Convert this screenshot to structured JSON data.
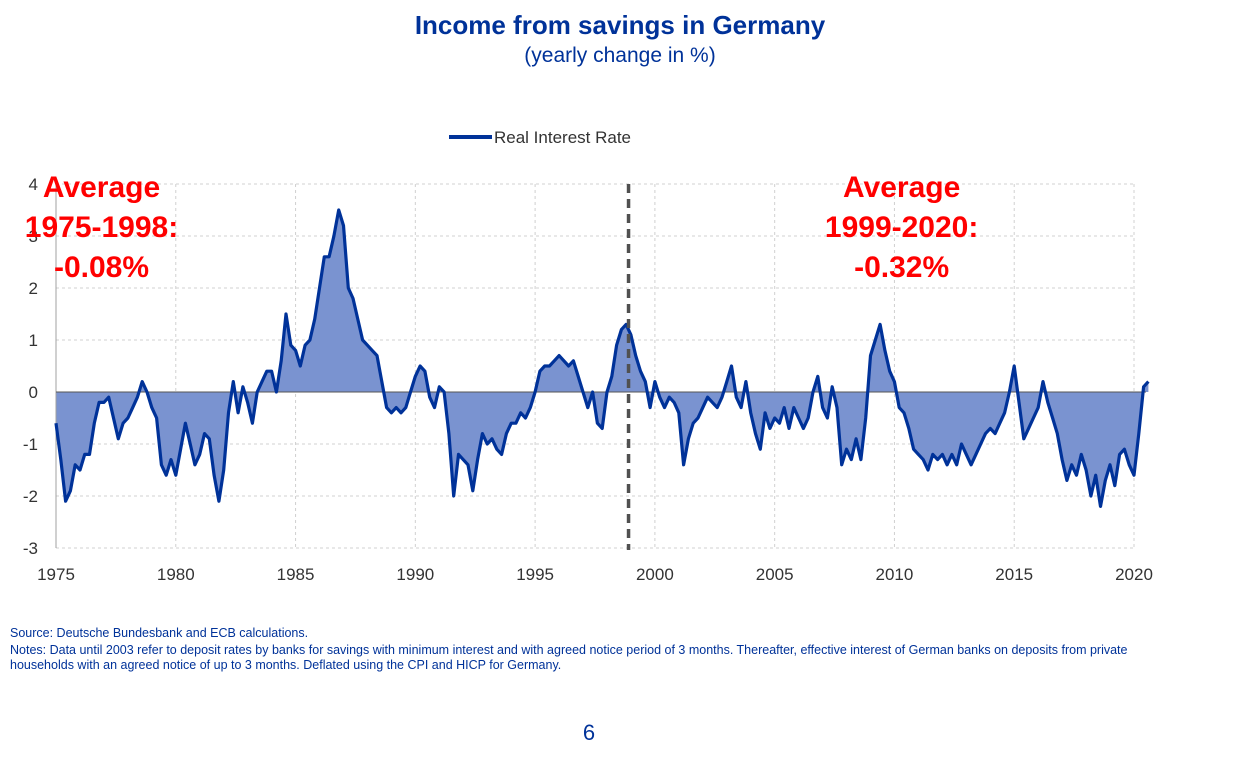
{
  "header": {
    "title": "Income from savings in Germany",
    "subtitle": "(yearly change in %)"
  },
  "footer": {
    "source": "Source: Deutsche Bundesbank and ECB calculations.",
    "notes": "Notes: Data until 2003 refer to deposit rates by banks for savings with minimum interest and with agreed notice period of 3 months. Thereafter, effective interest of German banks on deposits from private households with an agreed notice of up to 3 months. Deflated using the CPI and HICP for Germany.",
    "page_number": "6"
  },
  "chart_data": {
    "type": "area",
    "xlim": [
      1975,
      2020.7
    ],
    "ylim": [
      -3,
      4
    ],
    "x_ticks": [
      1975,
      1980,
      1985,
      1990,
      1995,
      2000,
      2005,
      2010,
      2015,
      2020
    ],
    "y_ticks": [
      -3,
      -2,
      -1,
      0,
      1,
      2,
      3,
      4
    ],
    "grid": true,
    "legend_position": "top-center",
    "colors": {
      "line": "#003299",
      "fill": "#7a93d0",
      "annotation": "#ff0000",
      "divider": "#505050"
    },
    "series": [
      {
        "name": "Real Interest Rate",
        "points": [
          [
            1975.0,
            -0.6
          ],
          [
            1975.2,
            -1.3
          ],
          [
            1975.4,
            -2.1
          ],
          [
            1975.6,
            -1.9
          ],
          [
            1975.8,
            -1.4
          ],
          [
            1976.0,
            -1.5
          ],
          [
            1976.2,
            -1.2
          ],
          [
            1976.4,
            -1.2
          ],
          [
            1976.6,
            -0.6
          ],
          [
            1976.8,
            -0.2
          ],
          [
            1977.0,
            -0.2
          ],
          [
            1977.2,
            -0.1
          ],
          [
            1977.4,
            -0.5
          ],
          [
            1977.6,
            -0.9
          ],
          [
            1977.8,
            -0.6
          ],
          [
            1978.0,
            -0.5
          ],
          [
            1978.2,
            -0.3
          ],
          [
            1978.4,
            -0.1
          ],
          [
            1978.6,
            0.2
          ],
          [
            1978.8,
            0.0
          ],
          [
            1979.0,
            -0.3
          ],
          [
            1979.2,
            -0.5
          ],
          [
            1979.4,
            -1.4
          ],
          [
            1979.6,
            -1.6
          ],
          [
            1979.8,
            -1.3
          ],
          [
            1980.0,
            -1.6
          ],
          [
            1980.2,
            -1.1
          ],
          [
            1980.4,
            -0.6
          ],
          [
            1980.6,
            -1.0
          ],
          [
            1980.8,
            -1.4
          ],
          [
            1981.0,
            -1.2
          ],
          [
            1981.2,
            -0.8
          ],
          [
            1981.4,
            -0.9
          ],
          [
            1981.6,
            -1.6
          ],
          [
            1981.8,
            -2.1
          ],
          [
            1982.0,
            -1.5
          ],
          [
            1982.2,
            -0.4
          ],
          [
            1982.4,
            0.2
          ],
          [
            1982.6,
            -0.4
          ],
          [
            1982.8,
            0.1
          ],
          [
            1983.0,
            -0.2
          ],
          [
            1983.2,
            -0.6
          ],
          [
            1983.4,
            0.0
          ],
          [
            1983.6,
            0.2
          ],
          [
            1983.8,
            0.4
          ],
          [
            1984.0,
            0.4
          ],
          [
            1984.2,
            0.0
          ],
          [
            1984.4,
            0.6
          ],
          [
            1984.6,
            1.5
          ],
          [
            1984.8,
            0.9
          ],
          [
            1985.0,
            0.8
          ],
          [
            1985.2,
            0.5
          ],
          [
            1985.4,
            0.9
          ],
          [
            1985.6,
            1.0
          ],
          [
            1985.8,
            1.4
          ],
          [
            1986.0,
            2.0
          ],
          [
            1986.2,
            2.6
          ],
          [
            1986.4,
            2.6
          ],
          [
            1986.6,
            3.0
          ],
          [
            1986.8,
            3.5
          ],
          [
            1987.0,
            3.2
          ],
          [
            1987.2,
            2.0
          ],
          [
            1987.4,
            1.8
          ],
          [
            1987.6,
            1.4
          ],
          [
            1987.8,
            1.0
          ],
          [
            1988.0,
            0.9
          ],
          [
            1988.2,
            0.8
          ],
          [
            1988.4,
            0.7
          ],
          [
            1988.6,
            0.2
          ],
          [
            1988.8,
            -0.3
          ],
          [
            1989.0,
            -0.4
          ],
          [
            1989.2,
            -0.3
          ],
          [
            1989.4,
            -0.4
          ],
          [
            1989.6,
            -0.3
          ],
          [
            1989.8,
            0.0
          ],
          [
            1990.0,
            0.3
          ],
          [
            1990.2,
            0.5
          ],
          [
            1990.4,
            0.4
          ],
          [
            1990.6,
            -0.1
          ],
          [
            1990.8,
            -0.3
          ],
          [
            1991.0,
            0.1
          ],
          [
            1991.2,
            0.0
          ],
          [
            1991.4,
            -0.8
          ],
          [
            1991.6,
            -2.0
          ],
          [
            1991.8,
            -1.2
          ],
          [
            1992.0,
            -1.3
          ],
          [
            1992.2,
            -1.4
          ],
          [
            1992.4,
            -1.9
          ],
          [
            1992.6,
            -1.3
          ],
          [
            1992.8,
            -0.8
          ],
          [
            1993.0,
            -1.0
          ],
          [
            1993.2,
            -0.9
          ],
          [
            1993.4,
            -1.1
          ],
          [
            1993.6,
            -1.2
          ],
          [
            1993.8,
            -0.8
          ],
          [
            1994.0,
            -0.6
          ],
          [
            1994.2,
            -0.6
          ],
          [
            1994.4,
            -0.4
          ],
          [
            1994.6,
            -0.5
          ],
          [
            1994.8,
            -0.3
          ],
          [
            1995.0,
            0.0
          ],
          [
            1995.2,
            0.4
          ],
          [
            1995.4,
            0.5
          ],
          [
            1995.6,
            0.5
          ],
          [
            1995.8,
            0.6
          ],
          [
            1996.0,
            0.7
          ],
          [
            1996.2,
            0.6
          ],
          [
            1996.4,
            0.5
          ],
          [
            1996.6,
            0.6
          ],
          [
            1996.8,
            0.3
          ],
          [
            1997.0,
            0.0
          ],
          [
            1997.2,
            -0.3
          ],
          [
            1997.4,
            0.0
          ],
          [
            1997.6,
            -0.6
          ],
          [
            1997.8,
            -0.7
          ],
          [
            1998.0,
            0.0
          ],
          [
            1998.2,
            0.3
          ],
          [
            1998.4,
            0.9
          ],
          [
            1998.6,
            1.2
          ],
          [
            1998.8,
            1.3
          ],
          [
            1999.0,
            1.1
          ],
          [
            1999.2,
            0.7
          ],
          [
            1999.4,
            0.4
          ],
          [
            1999.6,
            0.2
          ],
          [
            1999.8,
            -0.3
          ],
          [
            2000.0,
            0.2
          ],
          [
            2000.2,
            -0.1
          ],
          [
            2000.4,
            -0.3
          ],
          [
            2000.6,
            -0.1
          ],
          [
            2000.8,
            -0.2
          ],
          [
            2001.0,
            -0.4
          ],
          [
            2001.2,
            -1.4
          ],
          [
            2001.4,
            -0.9
          ],
          [
            2001.6,
            -0.6
          ],
          [
            2001.8,
            -0.5
          ],
          [
            2002.0,
            -0.3
          ],
          [
            2002.2,
            -0.1
          ],
          [
            2002.4,
            -0.2
          ],
          [
            2002.6,
            -0.3
          ],
          [
            2002.8,
            -0.1
          ],
          [
            2003.0,
            0.2
          ],
          [
            2003.2,
            0.5
          ],
          [
            2003.4,
            -0.1
          ],
          [
            2003.6,
            -0.3
          ],
          [
            2003.8,
            0.2
          ],
          [
            2004.0,
            -0.4
          ],
          [
            2004.2,
            -0.8
          ],
          [
            2004.4,
            -1.1
          ],
          [
            2004.6,
            -0.4
          ],
          [
            2004.8,
            -0.7
          ],
          [
            2005.0,
            -0.5
          ],
          [
            2005.2,
            -0.6
          ],
          [
            2005.4,
            -0.3
          ],
          [
            2005.6,
            -0.7
          ],
          [
            2005.8,
            -0.3
          ],
          [
            2006.0,
            -0.5
          ],
          [
            2006.2,
            -0.7
          ],
          [
            2006.4,
            -0.5
          ],
          [
            2006.6,
            0.0
          ],
          [
            2006.8,
            0.3
          ],
          [
            2007.0,
            -0.3
          ],
          [
            2007.2,
            -0.5
          ],
          [
            2007.4,
            0.1
          ],
          [
            2007.6,
            -0.3
          ],
          [
            2007.8,
            -1.4
          ],
          [
            2008.0,
            -1.1
          ],
          [
            2008.2,
            -1.3
          ],
          [
            2008.4,
            -0.9
          ],
          [
            2008.6,
            -1.3
          ],
          [
            2008.8,
            -0.5
          ],
          [
            2009.0,
            0.7
          ],
          [
            2009.2,
            1.0
          ],
          [
            2009.4,
            1.3
          ],
          [
            2009.6,
            0.8
          ],
          [
            2009.8,
            0.4
          ],
          [
            2010.0,
            0.2
          ],
          [
            2010.2,
            -0.3
          ],
          [
            2010.4,
            -0.4
          ],
          [
            2010.6,
            -0.7
          ],
          [
            2010.8,
            -1.1
          ],
          [
            2011.0,
            -1.2
          ],
          [
            2011.2,
            -1.3
          ],
          [
            2011.4,
            -1.5
          ],
          [
            2011.6,
            -1.2
          ],
          [
            2011.8,
            -1.3
          ],
          [
            2012.0,
            -1.2
          ],
          [
            2012.2,
            -1.4
          ],
          [
            2012.4,
            -1.2
          ],
          [
            2012.6,
            -1.4
          ],
          [
            2012.8,
            -1.0
          ],
          [
            2013.0,
            -1.2
          ],
          [
            2013.2,
            -1.4
          ],
          [
            2013.4,
            -1.2
          ],
          [
            2013.6,
            -1.0
          ],
          [
            2013.8,
            -0.8
          ],
          [
            2014.0,
            -0.7
          ],
          [
            2014.2,
            -0.8
          ],
          [
            2014.4,
            -0.6
          ],
          [
            2014.6,
            -0.4
          ],
          [
            2014.8,
            0.0
          ],
          [
            2015.0,
            0.5
          ],
          [
            2015.2,
            -0.2
          ],
          [
            2015.4,
            -0.9
          ],
          [
            2015.6,
            -0.7
          ],
          [
            2015.8,
            -0.5
          ],
          [
            2016.0,
            -0.3
          ],
          [
            2016.2,
            0.2
          ],
          [
            2016.4,
            -0.2
          ],
          [
            2016.6,
            -0.5
          ],
          [
            2016.8,
            -0.8
          ],
          [
            2017.0,
            -1.3
          ],
          [
            2017.2,
            -1.7
          ],
          [
            2017.4,
            -1.4
          ],
          [
            2017.6,
            -1.6
          ],
          [
            2017.8,
            -1.2
          ],
          [
            2018.0,
            -1.5
          ],
          [
            2018.2,
            -2.0
          ],
          [
            2018.4,
            -1.6
          ],
          [
            2018.6,
            -2.2
          ],
          [
            2018.8,
            -1.7
          ],
          [
            2019.0,
            -1.4
          ],
          [
            2019.2,
            -1.8
          ],
          [
            2019.4,
            -1.2
          ],
          [
            2019.6,
            -1.1
          ],
          [
            2019.8,
            -1.4
          ],
          [
            2020.0,
            -1.6
          ],
          [
            2020.2,
            -0.8
          ],
          [
            2020.4,
            0.1
          ],
          [
            2020.6,
            0.2
          ]
        ]
      }
    ],
    "divider_x": 1998.9,
    "annotations": [
      {
        "lines": [
          "Average",
          "1975-1998:",
          "-0.08%"
        ],
        "x": 1976.9,
        "y": 3.75
      },
      {
        "lines": [
          "Average",
          "1999-2020:",
          "-0.32%"
        ],
        "x": 2010.3,
        "y": 3.75
      }
    ]
  }
}
